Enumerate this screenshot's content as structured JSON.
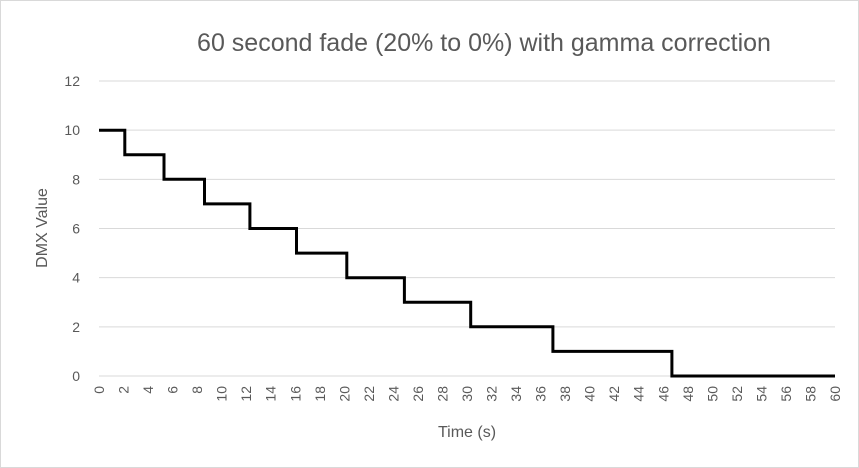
{
  "chart_data": {
    "type": "line",
    "step": true,
    "title": "60 second fade (20% to 0%) with gamma correction",
    "xlabel": "Time (s)",
    "ylabel": "DMX Value",
    "xlim": [
      0,
      60
    ],
    "ylim": [
      0,
      12
    ],
    "x_ticks": [
      0,
      2,
      4,
      6,
      8,
      10,
      12,
      14,
      16,
      18,
      20,
      22,
      24,
      26,
      28,
      30,
      32,
      34,
      36,
      38,
      40,
      42,
      44,
      46,
      48,
      50,
      52,
      54,
      56,
      58,
      60
    ],
    "y_ticks": [
      0,
      2,
      4,
      6,
      8,
      10,
      12
    ],
    "grid": true,
    "line_color": "#000000",
    "grid_color": "#d9d9d9",
    "text_color": "#595959",
    "series": [
      {
        "points": [
          [
            0,
            10
          ],
          [
            2.1,
            10
          ],
          [
            2.1,
            9
          ],
          [
            5.3,
            9
          ],
          [
            5.3,
            8
          ],
          [
            8.6,
            8
          ],
          [
            8.6,
            7
          ],
          [
            12.3,
            7
          ],
          [
            12.3,
            6
          ],
          [
            16.1,
            6
          ],
          [
            16.1,
            5
          ],
          [
            20.2,
            5
          ],
          [
            20.2,
            4
          ],
          [
            24.9,
            4
          ],
          [
            24.9,
            3
          ],
          [
            30.3,
            3
          ],
          [
            30.3,
            2
          ],
          [
            37.0,
            2
          ],
          [
            37.0,
            1
          ],
          [
            46.7,
            1
          ],
          [
            46.7,
            0
          ],
          [
            60,
            0
          ]
        ]
      }
    ]
  }
}
